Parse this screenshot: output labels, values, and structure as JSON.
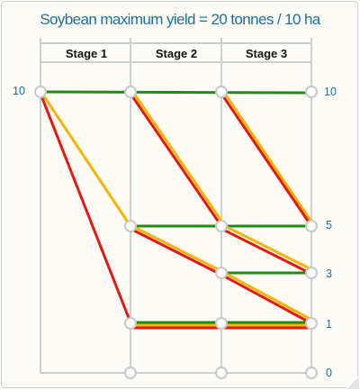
{
  "title": "Soybean maximum yield = 20 tonnes / 10 ha",
  "stages": [
    "Stage 1",
    "Stage 2",
    "Stage 3"
  ],
  "left_label": "10",
  "right_labels": [
    "10",
    "5",
    "3",
    "1",
    "0"
  ],
  "colors": {
    "green": "#1f8a14",
    "yellow": "#f5b400",
    "red": "#e11a12",
    "grid": "#cfcfcf",
    "label": "#1f6f9a"
  }
}
